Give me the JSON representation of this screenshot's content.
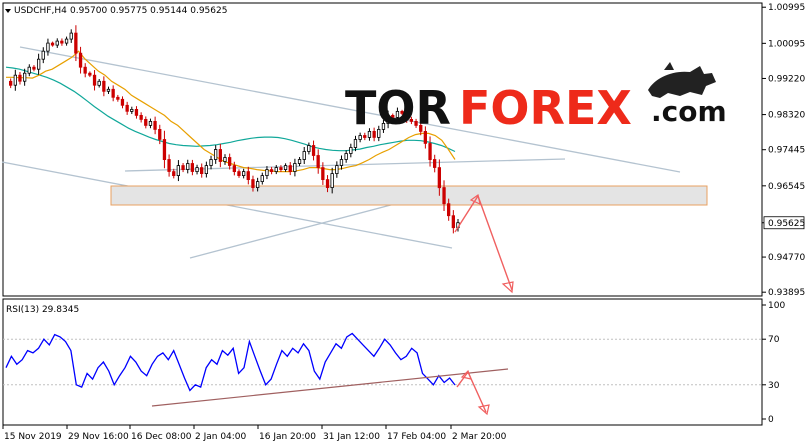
{
  "header": {
    "symbol": "USDCHF,H4",
    "ohlc": "0.95700 0.95775 0.95144 0.95625"
  },
  "brand": {
    "part1": "TOR",
    "part2": "FOREX",
    "part3": ".com",
    "logo_icon": "bull-icon"
  },
  "colors": {
    "bull_candle": "#000000",
    "bear_candle": "#cc0000",
    "ma_fast": "#e8a000",
    "ma_slow": "#11a89a",
    "channel": "#b4c3d0",
    "zone_fill": "#e4e4e4",
    "zone_stroke": "#e8a060",
    "forecast_arrow": "#f06060",
    "rsi_line": "#0000ff",
    "rsi_trend": "#a06060",
    "brand_dark": "#111111",
    "brand_red": "#ee2a1a"
  },
  "chart_data": [
    {
      "type": "candlestick",
      "title": "USDCHF,H4",
      "ohlc_last": {
        "open": 0.957,
        "high": 0.95775,
        "low": 0.95144,
        "close": 0.95625
      },
      "y_ticks": [
        "1.00995",
        "1.00095",
        "0.99220",
        "0.98320",
        "0.97445",
        "0.96545",
        "0.95625",
        "0.94770",
        "0.93895"
      ],
      "ylim": [
        0.938,
        1.011
      ],
      "last_price_label": "0.95625",
      "x_ticks": [
        "15 Nov 2019",
        "29 Nov 16:00",
        "16 Dec 08:00",
        "2 Jan 04:00",
        "16 Jan 20:00",
        "31 Jan 12:00",
        "17 Feb 04:00",
        "2 Mar 20:00"
      ],
      "close_series": [
        0.9915,
        0.9905,
        0.993,
        0.9915,
        0.9935,
        0.995,
        0.9945,
        0.997,
        0.999,
        1.001,
        1.0005,
        1.0015,
        1.001,
        1.002,
        1.0035,
        0.9985,
        0.995,
        0.9935,
        0.993,
        0.9905,
        0.9915,
        0.989,
        0.9895,
        0.9875,
        0.987,
        0.9855,
        0.984,
        0.9845,
        0.983,
        0.982,
        0.9805,
        0.9815,
        0.9795,
        0.977,
        0.972,
        0.969,
        0.968,
        0.9705,
        0.9695,
        0.971,
        0.969,
        0.97,
        0.9685,
        0.9705,
        0.972,
        0.9745,
        0.9715,
        0.9725,
        0.9705,
        0.969,
        0.968,
        0.969,
        0.967,
        0.965,
        0.9665,
        0.968,
        0.9695,
        0.969,
        0.97,
        0.9695,
        0.9705,
        0.969,
        0.971,
        0.972,
        0.974,
        0.9755,
        0.973,
        0.97,
        0.967,
        0.965,
        0.9685,
        0.9705,
        0.972,
        0.9735,
        0.975,
        0.977,
        0.978,
        0.9775,
        0.979,
        0.9775,
        0.9795,
        0.981,
        0.983,
        0.9825,
        0.984,
        0.9835,
        0.982,
        0.9815,
        0.9805,
        0.979,
        0.976,
        0.972,
        0.97,
        0.965,
        0.961,
        0.958,
        0.955,
        0.95625
      ],
      "ma_fast_series": [
        0.9925,
        0.9925,
        0.9924,
        0.9924,
        0.9923,
        0.993,
        0.994,
        0.9945,
        0.9955,
        0.9965,
        0.9975,
        0.999,
        0.997,
        0.9955,
        0.994,
        0.993,
        0.9915,
        0.9905,
        0.9895,
        0.988,
        0.987,
        0.986,
        0.985,
        0.984,
        0.983,
        0.9815,
        0.9805,
        0.979,
        0.9775,
        0.976,
        0.9745,
        0.9735,
        0.9725,
        0.9715,
        0.971,
        0.9705,
        0.97,
        0.9698,
        0.9695,
        0.9693,
        0.9692,
        0.969,
        0.969,
        0.969,
        0.9692,
        0.9695,
        0.97,
        0.97,
        0.9698,
        0.9695,
        0.9695,
        0.9698,
        0.9702,
        0.9705,
        0.9712,
        0.972,
        0.973,
        0.9738,
        0.9745,
        0.9755,
        0.9765,
        0.9775,
        0.9782,
        0.9785,
        0.9785,
        0.978,
        0.9768,
        0.9745,
        0.972
      ],
      "ma_slow_series": [
        0.995,
        0.9948,
        0.9945,
        0.994,
        0.9935,
        0.993,
        0.9925,
        0.9918,
        0.991,
        0.99,
        0.989,
        0.9878,
        0.9865,
        0.9852,
        0.984,
        0.9828,
        0.9818,
        0.9808,
        0.9798,
        0.979,
        0.9783,
        0.9776,
        0.977,
        0.9765,
        0.976,
        0.9757,
        0.9755,
        0.9754,
        0.9753,
        0.9754,
        0.9755,
        0.9757,
        0.976,
        0.9763,
        0.9767,
        0.977,
        0.9773,
        0.9775,
        0.9776,
        0.9776,
        0.9775,
        0.9772,
        0.9768,
        0.9763,
        0.9758,
        0.9752,
        0.9748,
        0.9745,
        0.9743,
        0.9742,
        0.9742,
        0.9744,
        0.9746,
        0.975,
        0.9753,
        0.9757,
        0.976,
        0.9763,
        0.9766,
        0.9768,
        0.9768,
        0.9767,
        0.9764,
        0.976,
        0.9755,
        0.9748,
        0.974
      ]
    },
    {
      "type": "line",
      "title": "RSI(13) 29.8345",
      "y_ticks": [
        "100",
        "70",
        "30",
        "0"
      ],
      "ylim": [
        0,
        100
      ],
      "series": [
        {
          "name": "RSI(13)",
          "values": [
            45,
            55,
            48,
            52,
            60,
            58,
            62,
            70,
            65,
            74,
            72,
            68,
            60,
            30,
            28,
            40,
            35,
            45,
            50,
            42,
            30,
            38,
            45,
            55,
            50,
            42,
            38,
            48,
            55,
            58,
            52,
            60,
            48,
            36,
            25,
            30,
            28,
            45,
            52,
            48,
            60,
            56,
            62,
            40,
            45,
            68,
            55,
            42,
            30,
            35,
            48,
            60,
            55,
            62,
            58,
            66,
            60,
            42,
            35,
            50,
            58,
            66,
            62,
            72,
            75,
            70,
            65,
            60,
            55,
            62,
            70,
            65,
            58,
            52,
            55,
            62,
            58,
            40,
            35,
            30,
            38,
            32,
            36,
            29.8345
          ]
        }
      ]
    }
  ]
}
